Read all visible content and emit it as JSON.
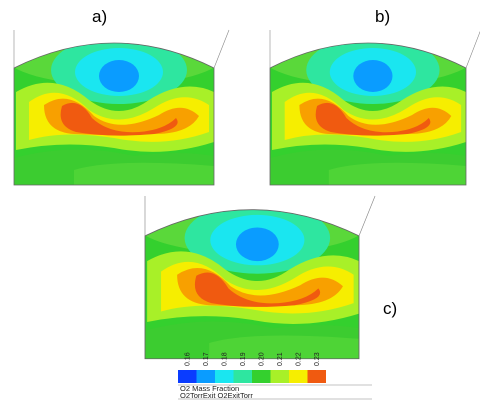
{
  "panels": [
    {
      "label": "a)"
    },
    {
      "label": "b)"
    },
    {
      "label": "c)"
    }
  ],
  "colorbar": {
    "title": "O2 Mass Fraction",
    "subtitle": "O2TorrExit O2ExitTorr",
    "ticks": [
      0.16,
      0.17,
      0.18,
      0.19,
      0.2,
      0.21,
      0.22,
      0.23
    ],
    "tick_labels": [
      "0.16",
      "0.17",
      "0.18",
      "0.19",
      "0.20",
      "0.21",
      "0.22",
      "0.23"
    ],
    "colors": [
      "#0a3cff",
      "#0a9cff",
      "#1ae6f0",
      "#2ee6a0",
      "#34d02e",
      "#a8f028",
      "#f6ee00",
      "#f05a10"
    ]
  }
}
